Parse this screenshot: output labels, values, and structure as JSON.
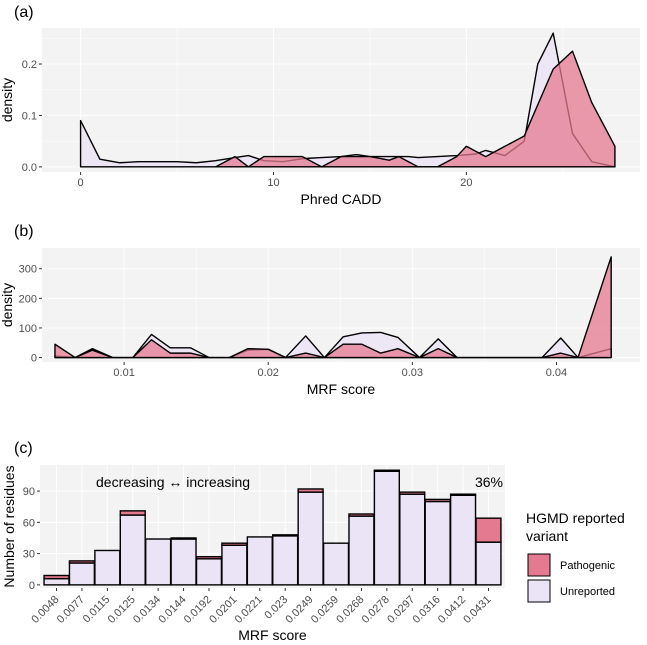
{
  "colors": {
    "pathogenic": "#e47a90",
    "unreported": "#ebe3f6",
    "panel_bg": "#f3f3f3",
    "grid": "#ffffff"
  },
  "legend": {
    "title_line1": "HGMD reported",
    "title_line2": "variant",
    "items": [
      "Pathogenic",
      "Unreported"
    ]
  },
  "chart_data": [
    {
      "panel": "(a)",
      "type": "area",
      "xlabel": "Phred CADD",
      "ylabel": "density",
      "xlim": [
        -2,
        29
      ],
      "ylim": [
        -0.01,
        0.27
      ],
      "xticks": [
        0,
        10,
        20
      ],
      "yticks": [
        "0.0",
        "0.1",
        "0.2"
      ],
      "ytick_values": [
        0,
        0.1,
        0.2
      ],
      "series": [
        {
          "name": "Unreported",
          "points": [
            [
              0,
              0.09
            ],
            [
              1,
              0.015
            ],
            [
              2,
              0.008
            ],
            [
              3,
              0.01
            ],
            [
              4,
              0.01
            ],
            [
              5,
              0.01
            ],
            [
              6,
              0.008
            ],
            [
              7,
              0.012
            ],
            [
              8,
              0.018
            ],
            [
              8.7,
              0.022
            ],
            [
              9.5,
              0.012
            ],
            [
              10.5,
              0.01
            ],
            [
              11.5,
              0.016
            ],
            [
              12.5,
              0.018
            ],
            [
              13.5,
              0.02
            ],
            [
              14.3,
              0.024
            ],
            [
              15,
              0.02
            ],
            [
              16,
              0.02
            ],
            [
              17,
              0.02
            ],
            [
              17.5,
              0.018
            ],
            [
              18.5,
              0.02
            ],
            [
              19.5,
              0.022
            ],
            [
              20.5,
              0.025
            ],
            [
              21,
              0.032
            ],
            [
              22,
              0.022
            ],
            [
              23,
              0.05
            ],
            [
              23.7,
              0.2
            ],
            [
              24.5,
              0.26
            ],
            [
              25.5,
              0.065
            ],
            [
              26.5,
              0.01
            ],
            [
              27.7,
              0
            ]
          ]
        },
        {
          "name": "Pathogenic",
          "points": [
            [
              7,
              0
            ],
            [
              8,
              0.02
            ],
            [
              8.7,
              0
            ],
            [
              9.5,
              0.02
            ],
            [
              11.5,
              0.02
            ],
            [
              12.5,
              0
            ],
            [
              13.5,
              0.02
            ],
            [
              15,
              0.02
            ],
            [
              16,
              0.013
            ],
            [
              16.5,
              0.02
            ],
            [
              17.5,
              0
            ],
            [
              18.5,
              0
            ],
            [
              19.5,
              0.02
            ],
            [
              20,
              0.04
            ],
            [
              21,
              0.02
            ],
            [
              22,
              0.04
            ],
            [
              23,
              0.06
            ],
            [
              24.5,
              0.19
            ],
            [
              25.5,
              0.225
            ],
            [
              26.5,
              0.125
            ],
            [
              27.7,
              0.04
            ]
          ]
        }
      ]
    },
    {
      "panel": "(b)",
      "type": "area",
      "xlabel": "MRF score",
      "ylabel": "density",
      "xlim": [
        0.0043,
        0.0458
      ],
      "ylim": [
        -15,
        370
      ],
      "xticks": [
        "0.01",
        "0.02",
        "0.03",
        "0.04"
      ],
      "xtick_values": [
        0.01,
        0.02,
        0.03,
        0.04
      ],
      "yticks": [
        "0",
        "100",
        "200",
        "300"
      ],
      "ytick_values": [
        0,
        100,
        200,
        300
      ],
      "series": [
        {
          "name": "Unreported",
          "points": [
            [
              0.0052,
              5
            ],
            [
              0.0066,
              0
            ],
            [
              0.0078,
              30
            ],
            [
              0.0092,
              0
            ],
            [
              0.0106,
              0
            ],
            [
              0.0119,
              78
            ],
            [
              0.0132,
              33
            ],
            [
              0.0146,
              33
            ],
            [
              0.0159,
              0
            ],
            [
              0.0173,
              0
            ],
            [
              0.0186,
              25
            ],
            [
              0.02,
              28
            ],
            [
              0.0212,
              0
            ],
            [
              0.0226,
              73
            ],
            [
              0.0239,
              0
            ],
            [
              0.0252,
              70
            ],
            [
              0.0265,
              83
            ],
            [
              0.0278,
              85
            ],
            [
              0.029,
              68
            ],
            [
              0.0305,
              0
            ],
            [
              0.0318,
              63
            ],
            [
              0.0331,
              0
            ],
            [
              0.039,
              0
            ],
            [
              0.0403,
              66
            ],
            [
              0.0415,
              0
            ],
            [
              0.0438,
              30
            ]
          ]
        },
        {
          "name": "Pathogenic",
          "points": [
            [
              0.0052,
              45
            ],
            [
              0.0066,
              0
            ],
            [
              0.0078,
              25
            ],
            [
              0.0092,
              0
            ],
            [
              0.0106,
              0
            ],
            [
              0.0119,
              60
            ],
            [
              0.0132,
              15
            ],
            [
              0.0146,
              15
            ],
            [
              0.0159,
              0
            ],
            [
              0.0173,
              0
            ],
            [
              0.0186,
              30
            ],
            [
              0.02,
              28
            ],
            [
              0.0212,
              0
            ],
            [
              0.0226,
              15
            ],
            [
              0.0239,
              0
            ],
            [
              0.0252,
              45
            ],
            [
              0.0265,
              45
            ],
            [
              0.0278,
              15
            ],
            [
              0.029,
              30
            ],
            [
              0.0305,
              0
            ],
            [
              0.0318,
              30
            ],
            [
              0.0331,
              0
            ],
            [
              0.039,
              0
            ],
            [
              0.0403,
              15
            ],
            [
              0.0415,
              0
            ],
            [
              0.0438,
              340
            ]
          ]
        }
      ]
    },
    {
      "panel": "(c)",
      "type": "bar",
      "stacked": true,
      "xlabel": "MRF score",
      "ylabel": "Number of residues",
      "ylim": [
        -3,
        115
      ],
      "yticks": [
        "0",
        "30",
        "60",
        "90"
      ],
      "ytick_values": [
        0,
        30,
        60,
        90
      ],
      "annotation": "decreasing ↔ increasing",
      "annotation_pct": "36%",
      "categories": [
        "0.0048",
        "0.0077",
        "0.0115",
        "0.0125",
        "0.0134",
        "0.0144",
        "0.0192",
        "0.0201",
        "0.0221",
        "0.023",
        "0.0249",
        "0.0259",
        "0.0268",
        "0.0278",
        "0.0297",
        "0.0316",
        "0.0412",
        "0.0431"
      ],
      "series": [
        {
          "name": "Unreported",
          "values": [
            6,
            21,
            33,
            67,
            44,
            44,
            25,
            38,
            46,
            47,
            89,
            40,
            66,
            109,
            87,
            80,
            86,
            41
          ]
        },
        {
          "name": "Pathogenic",
          "values": [
            3,
            2,
            0,
            4,
            0,
            1,
            2,
            2,
            0,
            1,
            3,
            0,
            2,
            1,
            2,
            2,
            1,
            23
          ]
        }
      ]
    }
  ]
}
